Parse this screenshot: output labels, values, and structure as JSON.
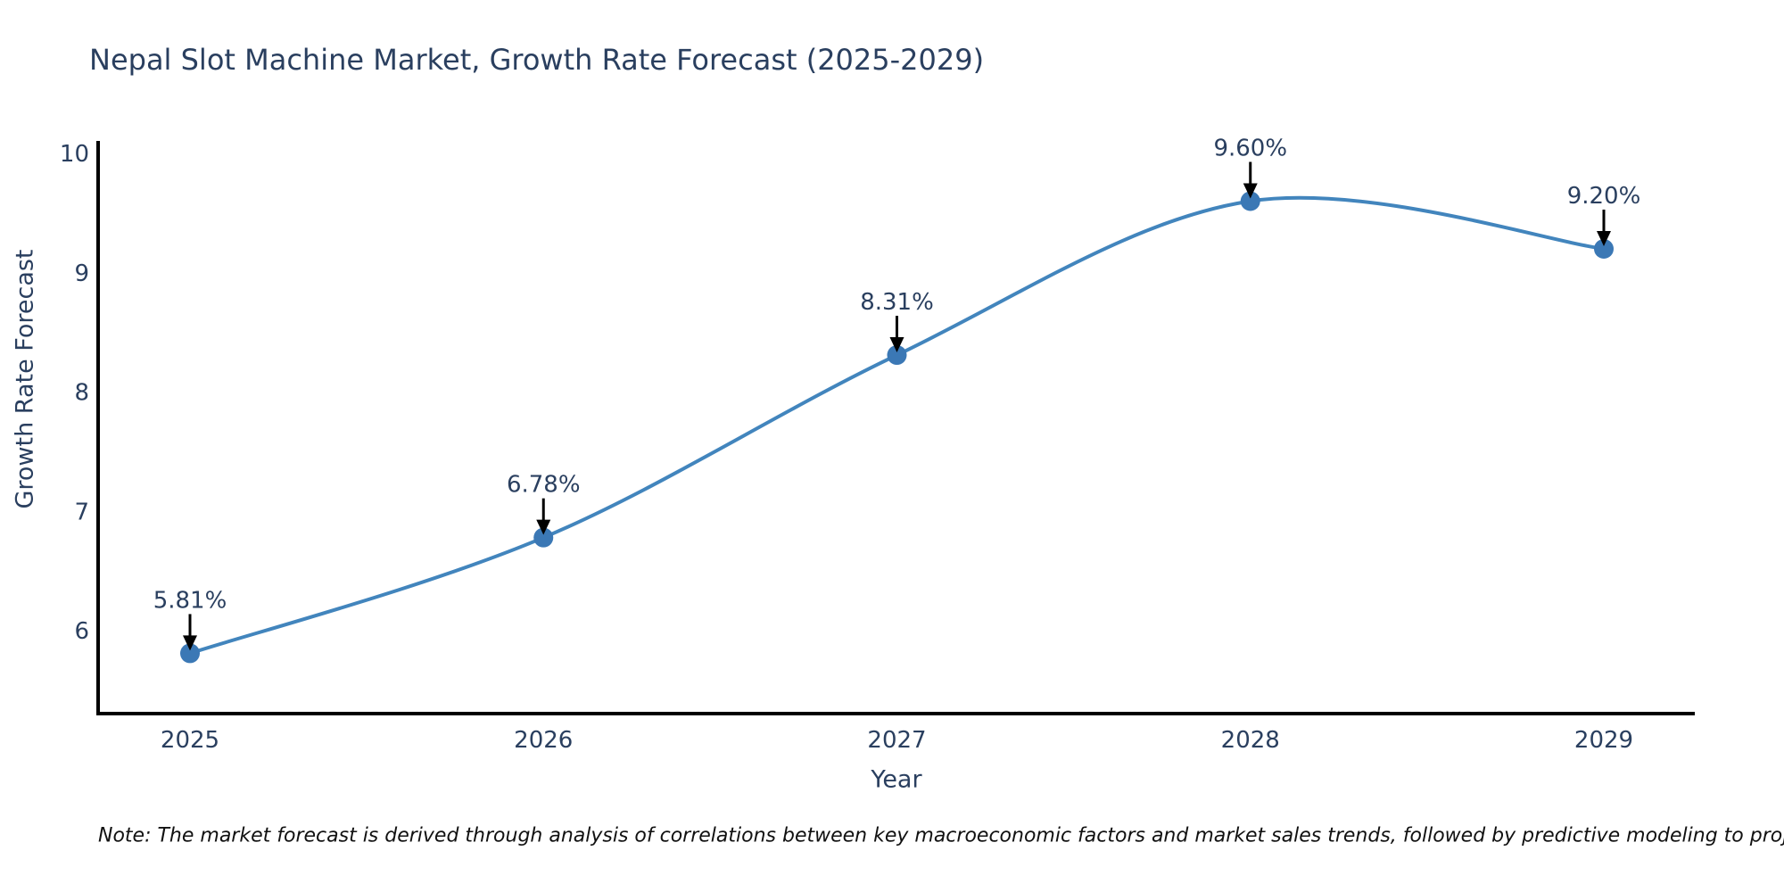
{
  "title": "Nepal Slot Machine Market, Growth Rate Forecast (2025-2029)",
  "note": "Note: The market forecast is derived through analysis of correlations between key macroeconomic factors and market sales trends, followed by predictive modeling to project future sales",
  "chart_data": {
    "type": "line",
    "title": "Nepal Slot Machine Market, Growth Rate Forecast (2025-2029)",
    "xlabel": "Year",
    "ylabel": "Growth Rate Forecast",
    "categories": [
      "2025",
      "2026",
      "2027",
      "2028",
      "2029"
    ],
    "series": [
      {
        "name": "Growth Rate Forecast",
        "values": [
          5.81,
          6.78,
          8.31,
          9.6,
          9.2
        ]
      }
    ],
    "point_labels": [
      "5.81%",
      "6.78%",
      "8.31%",
      "9.60%",
      "9.20%"
    ],
    "yticks": [
      6,
      7,
      8,
      9,
      10
    ],
    "ylim": [
      5.3,
      10.1
    ],
    "grid": false,
    "legend_position": "none",
    "curve": "spline",
    "line_color": "#4285bd",
    "marker_color": "#3b78b5",
    "axis_color": "#000000",
    "text_color": "#2a3f5f",
    "annotation_arrow_color": "#000000"
  }
}
